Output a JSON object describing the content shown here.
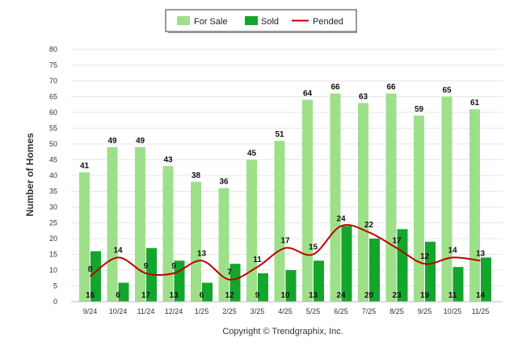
{
  "chart_data": {
    "type": "bar",
    "title": "",
    "xlabel": "",
    "ylabel": "Number of Homes",
    "ylim": [
      0,
      80
    ],
    "yticks": [
      0,
      5,
      10,
      15,
      20,
      25,
      30,
      35,
      40,
      45,
      50,
      55,
      60,
      65,
      70,
      75,
      80
    ],
    "categories": [
      "9/24",
      "10/24",
      "11/24",
      "12/24",
      "1/25",
      "2/25",
      "3/25",
      "4/25",
      "5/25",
      "6/25",
      "7/25",
      "8/25",
      "9/25",
      "10/25",
      "11/25"
    ],
    "series": [
      {
        "name": "For Sale",
        "kind": "bar",
        "color": "#9ee08a",
        "values": [
          41,
          49,
          49,
          43,
          38,
          36,
          45,
          51,
          64,
          66,
          63,
          66,
          59,
          65,
          61
        ]
      },
      {
        "name": "Sold",
        "kind": "bar",
        "color": "#13a52c",
        "values": [
          16,
          6,
          17,
          13,
          6,
          12,
          9,
          10,
          13,
          24,
          20,
          23,
          19,
          11,
          14
        ]
      },
      {
        "name": "Pended",
        "kind": "line",
        "color": "#c00000",
        "values": [
          8,
          14,
          9,
          9,
          13,
          7,
          11,
          17,
          15,
          24,
          22,
          17,
          12,
          14,
          13
        ]
      }
    ],
    "legend_position": "top-center",
    "grid": true
  },
  "footer": {
    "copyright": "Copyright © Trendgraphix, Inc."
  }
}
